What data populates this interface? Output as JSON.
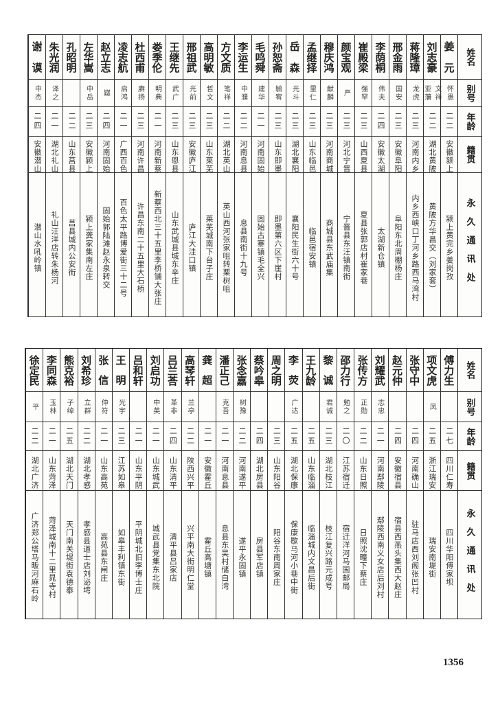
{
  "headers": {
    "name": "姓名",
    "alias": "别号",
    "age": "年龄",
    "origin": "籍贯",
    "address": "永久通讯处"
  },
  "tables": [
    {
      "rows": [
        {
          "name": "姜元",
          "alias": "怀愚",
          "age": "二二",
          "origin": "安徽颍上",
          "address": "颍上黄完乡姜岗孜"
        },
        {
          "name": "刘志豪",
          "alias": "文祥\n亚藩",
          "age": "二二",
          "origin": "湖北黄陂",
          "address": "黄陂方华昌交（刘家套）"
        },
        {
          "name": "蒋隆璋",
          "alias": "龙虎",
          "age": "二三",
          "origin": "河南内乡",
          "address": "内乡西峡口丁河乡路西马湾村"
        },
        {
          "name": "邢金雨",
          "alias": "国安",
          "age": "二三",
          "origin": "安徽阜阳",
          "address": "阜阳东北周棚杨庄"
        },
        {
          "name": "李荫桐",
          "alias": "伟夫",
          "age": "二四",
          "origin": "安徽太湖",
          "address": "太湖新仓镇"
        },
        {
          "name": "崔殿梁",
          "alias": "强罕",
          "age": "二三",
          "origin": "山西夏县",
          "address": "夏县张郭店村崔家巷"
        },
        {
          "name": "颜宝观",
          "alias": "严",
          "age": "二三",
          "origin": "河北宁晋",
          "address": "宁晋县东汪镇南街"
        },
        {
          "name": "穆庆鸿",
          "alias": "献麟",
          "age": "二三",
          "origin": "河南商城",
          "address": "商城县东武庙集"
        },
        {
          "name": "孟继择",
          "alias": "里仁",
          "age": "二三",
          "origin": "山东临邑",
          "address": "临邑宿安镇"
        },
        {
          "name": "岳森",
          "alias": "光斗",
          "age": "二三",
          "origin": "湖北襄阳",
          "address": "襄阳民生街六十号"
        },
        {
          "name": "孙恕斋",
          "alias": "毓宥",
          "age": "二三",
          "origin": "山东即墨",
          "address": "即墨第六区下崖村"
        },
        {
          "name": "毛鸣舜",
          "alias": "建华",
          "age": "二一",
          "origin": "河南固始",
          "address": "固始古寨镇毛全兴"
        },
        {
          "name": "李运生",
          "alias": "中濮",
          "age": "二二",
          "origin": "河南息县",
          "address": "息县南街十九号"
        },
        {
          "name": "方文质",
          "alias": "笔祥",
          "age": "二二",
          "origin": "湖北英山",
          "address": "英山西河张家咀转栗树咀"
        },
        {
          "name": "高明敏",
          "alias": "哲文",
          "age": "二三",
          "origin": "山东莱芜",
          "address": "莱芜城南下台子庄"
        },
        {
          "name": "邢祖武",
          "alias": "光前",
          "age": "二三",
          "origin": "安徽庐江",
          "address": "庐江大洼口镇"
        },
        {
          "name": "王继先",
          "alias": "武广",
          "age": "二三",
          "origin": "山东恩县",
          "address": "山东武城县城东辛庄"
        },
        {
          "name": "娄季伦",
          "alias": "明典",
          "age": "二一",
          "origin": "河南新蔡",
          "address": "新蔡西北三十五里李桥铺大张庄"
        },
        {
          "name": "杜西甫",
          "alias": "赓扬",
          "age": "二三",
          "origin": "河南许昌",
          "address": "许昌东南二十五里大石桥"
        },
        {
          "name": "凌志航",
          "alias": "启鸿",
          "age": "二一",
          "origin": "广西百色",
          "address": "百色太平路博爱街三十二号"
        },
        {
          "name": "赵立志",
          "alias": "嶷",
          "age": "二四",
          "origin": "河南固始",
          "address": "固始郭陆滩赵永泉转交"
        },
        {
          "name": "左华嵩",
          "alias": "中岳",
          "age": "二三",
          "origin": "安徽颍上",
          "address": "颍上龚家集南左庄"
        },
        {
          "name": "孔昭明",
          "alias": "",
          "age": "二二",
          "origin": "山东莒县",
          "address": "莒县城内公安街"
        },
        {
          "name": "朱光润",
          "alias": "泽之",
          "age": "二一",
          "origin": "湖北礼山",
          "address": "礼山汪洋店转朱杨河"
        },
        {
          "name": "谢谟",
          "alias": "中杰",
          "age": "二四",
          "origin": "安徽潜山",
          "address": "潜山水吼岭镇"
        }
      ]
    },
    {
      "rows": [
        {
          "name": "傅力生",
          "alias": "",
          "age": "二七",
          "origin": "四川仁寿",
          "address": "四川华阳傅家坝"
        },
        {
          "name": "项文虎",
          "alias": "凤",
          "age": "二五",
          "origin": "浙江瑞安",
          "address": "瑞安南堤街"
        },
        {
          "name": "张守中",
          "alias": "",
          "age": "二四",
          "origin": "河南确山",
          "address": "驻马店西刘阁张凹村"
        },
        {
          "name": "赵元仲",
          "alias": "",
          "age": "二四",
          "origin": "安徽宿县",
          "address": "宿县西燕头集西大赵庄"
        },
        {
          "name": "刘耀武",
          "alias": "志忠",
          "age": "二一",
          "origin": "河南鄢陵",
          "address": "鄢陵西南义女店后刘村"
        },
        {
          "name": "张传方",
          "alias": "正勋",
          "age": "二二",
          "origin": "山东日照",
          "address": "日照沈疃下蔡庄"
        },
        {
          "name": "邵力行",
          "alias": "勉之",
          "age": "二〇",
          "origin": "江苏宿迁",
          "address": "宿迁洋河马国邮局"
        },
        {
          "name": "黎诚",
          "alias": "君诚",
          "age": "二三",
          "origin": "湖北枝江",
          "address": "枝江复兴路元成号"
        },
        {
          "name": "王九龄",
          "alias": "",
          "age": "二五",
          "origin": "山东临淄",
          "address": "临淄城内文昌后街"
        },
        {
          "name": "李荧",
          "alias": "广达",
          "age": "二五",
          "origin": "湖北保康",
          "address": "保康歇马河小巷中街"
        },
        {
          "name": "周之明",
          "alias": "",
          "age": "二三",
          "origin": "山东阳谷",
          "address": "阳谷东南周家庄"
        },
        {
          "name": "蔡吟皋",
          "alias": "",
          "age": "二四",
          "origin": "湖北房县",
          "address": "房县军店镇"
        },
        {
          "name": "张念嘉",
          "alias": "树豫",
          "age": "二二",
          "origin": "河南遂平",
          "address": "遂平永固镇"
        },
        {
          "name": "潘正己",
          "alias": "克吾",
          "age": "二一",
          "origin": "河南息县",
          "address": "息县东吴村储白湾"
        },
        {
          "name": "龚超",
          "alias": "",
          "age": "二一",
          "origin": "安徽霍丘",
          "address": "霍丘高塘镇"
        },
        {
          "name": "高琴轩",
          "alias": "兰亭",
          "age": "二二",
          "origin": "陕西兴平",
          "address": "兴平南大街明仁堂"
        },
        {
          "name": "吕兰荅",
          "alias": "革非",
          "age": "二四",
          "origin": "山东清平",
          "address": "清平县吕家店"
        },
        {
          "name": "刘启功",
          "alias": "中英",
          "age": "二一",
          "origin": "山东城武",
          "address": "城武县党集东北院"
        },
        {
          "name": "吕和轩",
          "alias": "",
          "age": "二一",
          "origin": "山东平阴",
          "address": "平阴城北旧李博士庄"
        },
        {
          "name": "王明",
          "alias": "光宇",
          "age": "二三",
          "origin": "江苏如皋",
          "address": "如皋丰利镇东街"
        },
        {
          "name": "张信",
          "alias": "仲符",
          "age": "二一",
          "origin": "山东高苑",
          "address": "高苑县东闸庄"
        },
        {
          "name": "刘希珍",
          "alias": "立群",
          "age": "二二",
          "origin": "湖北孝感",
          "address": "孝感县道士店刘泌塆"
        },
        {
          "name": "熊克裕",
          "alias": "子绰",
          "age": "二五",
          "origin": "湖北天门",
          "address": "天门南关堤街袁德泰"
        },
        {
          "name": "李同森",
          "alias": "玉林",
          "age": "二一",
          "origin": "山东菏泽",
          "address": "菏泽城南十二里晁寺村"
        },
        {
          "name": "徐定民",
          "alias": "平",
          "age": "二二",
          "origin": "湖北广济",
          "address": "广济郑公塔马畈河麻石岭"
        }
      ]
    }
  ],
  "page_number": "1356"
}
